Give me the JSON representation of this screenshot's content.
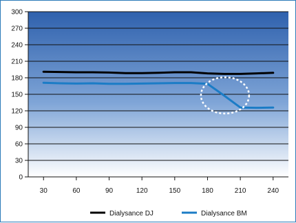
{
  "chart_data": {
    "type": "line",
    "title": "",
    "xlabel": "",
    "ylabel": "",
    "x": [
      30,
      60,
      90,
      120,
      150,
      180,
      210,
      240
    ],
    "xticks": [
      "30",
      "60",
      "90",
      "120",
      "150",
      "180",
      "210",
      "240"
    ],
    "ylim": [
      0,
      300
    ],
    "yticks": [
      "0",
      "30",
      "60",
      "90",
      "120",
      "150",
      "180",
      "210",
      "240",
      "270",
      "300"
    ],
    "grid": true,
    "legend": "bottom",
    "series": [
      {
        "name": "Dialysance DJ",
        "color": "#000000",
        "x": [
          30,
          45,
          60,
          75,
          90,
          105,
          120,
          135,
          150,
          165,
          180,
          195,
          210,
          225,
          240
        ],
        "values": [
          191,
          190.5,
          190,
          190,
          189.5,
          188.5,
          188.5,
          189,
          190,
          190,
          188,
          187,
          187,
          188,
          189
        ]
      },
      {
        "name": "Dialysance BM",
        "color": "#1b7cc6",
        "x": [
          30,
          45,
          60,
          75,
          90,
          105,
          120,
          135,
          150,
          165,
          180,
          195,
          210,
          225,
          240
        ],
        "values": [
          171,
          170,
          169.5,
          170,
          169,
          169,
          169.5,
          170,
          170.5,
          170.5,
          169,
          148,
          126,
          125.5,
          126
        ]
      }
    ],
    "annotation": {
      "type": "dashed-circle",
      "color": "#ffffff",
      "center_x": 196,
      "center_y": 148,
      "radius_x": 22,
      "radius_y": 33
    }
  }
}
